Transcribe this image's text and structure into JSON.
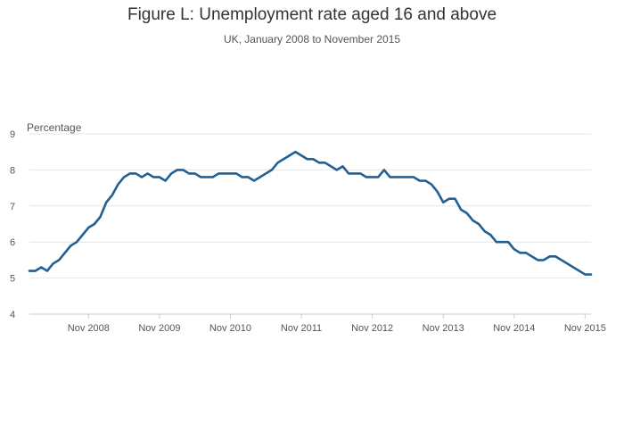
{
  "title": "Figure L: Unemployment rate aged 16 and above",
  "subtitle": "UK, January 2008 to November 2015",
  "chart_data": {
    "type": "line",
    "title": "Figure L: Unemployment rate aged 16 and above",
    "subtitle": "UK, January 2008 to November 2015",
    "ylabel": "Percentage",
    "xlabel": "",
    "ylim": [
      4,
      9
    ],
    "yticks": [
      "4",
      "5",
      "6",
      "7",
      "8",
      "9"
    ],
    "xticks": [
      "Nov 2008",
      "Nov 2009",
      "Nov 2010",
      "Nov 2011",
      "Nov 2012",
      "Nov 2013",
      "Nov 2014",
      "Nov 2015"
    ],
    "x_start": "Jan 2008",
    "x_end": "Nov 2015",
    "grid": true,
    "line_color": "#206095",
    "series": [
      {
        "name": "",
        "values": [
          5.2,
          5.2,
          5.3,
          5.2,
          5.4,
          5.5,
          5.7,
          5.9,
          6.0,
          6.2,
          6.4,
          6.5,
          6.7,
          7.1,
          7.3,
          7.6,
          7.8,
          7.9,
          7.9,
          7.8,
          7.9,
          7.8,
          7.8,
          7.7,
          7.9,
          8.0,
          8.0,
          7.9,
          7.9,
          7.8,
          7.8,
          7.8,
          7.9,
          7.9,
          7.9,
          7.9,
          7.8,
          7.8,
          7.7,
          7.8,
          7.9,
          8.0,
          8.2,
          8.3,
          8.4,
          8.5,
          8.4,
          8.3,
          8.3,
          8.2,
          8.2,
          8.1,
          8.0,
          8.1,
          7.9,
          7.9,
          7.9,
          7.8,
          7.8,
          7.8,
          8.0,
          7.8,
          7.8,
          7.8,
          7.8,
          7.8,
          7.7,
          7.7,
          7.6,
          7.4,
          7.1,
          7.2,
          7.2,
          6.9,
          6.8,
          6.6,
          6.5,
          6.3,
          6.2,
          6.0,
          6.0,
          6.0,
          5.8,
          5.7,
          5.7,
          5.6,
          5.5,
          5.5,
          5.6,
          5.6,
          5.5,
          5.4,
          5.3,
          5.2,
          5.1,
          5.1
        ]
      }
    ]
  }
}
